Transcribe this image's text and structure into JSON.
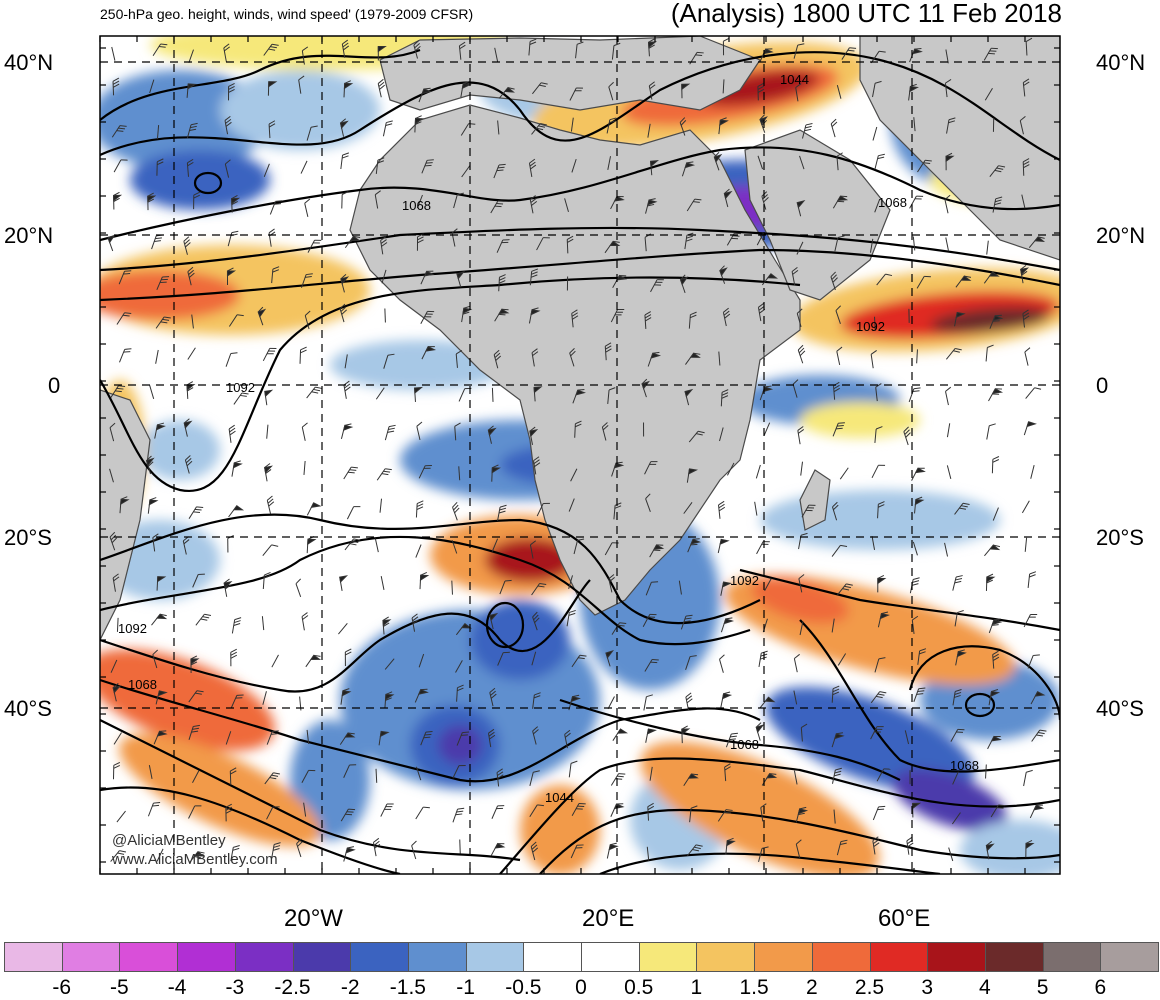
{
  "header": {
    "title_left": "250-hPa geo. height, winds, wind speed' (1979-2009 CFSR)",
    "title_right": "(Analysis) 1800 UTC 11 Feb 2018"
  },
  "map": {
    "lat_labels_left": [
      "40°N",
      "20°N",
      "0",
      "20°S",
      "40°S"
    ],
    "lat_labels_right": [
      "40°N",
      "20°N",
      "0",
      "20°S",
      "40°S"
    ],
    "lon_labels": [
      "20°W",
      "20°E",
      "60°E"
    ],
    "contour_labels": [
      "1044",
      "1068",
      "1068",
      "1092",
      "1092",
      "1092",
      "1092",
      "1068",
      "1068",
      "1068",
      "1044"
    ],
    "credits": [
      "@AliciaMBentley",
      "www.AliciaMBentley.com"
    ],
    "colors": {
      "land": "#c8c8c8",
      "coast": "#4a4a4a",
      "contour": "#000000",
      "grid": "#000000"
    }
  },
  "legend": {
    "colors": [
      "#e9b8e6",
      "#e07ee3",
      "#d94fd9",
      "#b12fd4",
      "#7b2fc4",
      "#4b3aab",
      "#3b63c0",
      "#5f8fcf",
      "#a7c8e6",
      "#ffffff",
      "#ffffff",
      "#f6e87a",
      "#f4c460",
      "#f29a4a",
      "#ef6a3a",
      "#e02a24",
      "#a8141a",
      "#6b2a2a",
      "#7b6e6e",
      "#a79d9d"
    ],
    "ticks": [
      "-6",
      "-5",
      "-4",
      "-3",
      "-2.5",
      "-2",
      "-1.5",
      "-1",
      "-0.5",
      "0",
      "0.5",
      "1",
      "1.5",
      "2",
      "2.5",
      "3",
      "4",
      "5",
      "6"
    ]
  }
}
